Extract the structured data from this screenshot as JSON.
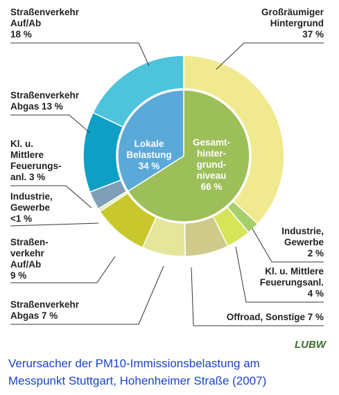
{
  "chart_data": {
    "type": "nested-donut",
    "outer": {
      "label_lines": [
        [
          "Großräumiger",
          "Hintergrund"
        ],
        [
          "Industrie,",
          "Gewerbe"
        ],
        [
          "Kl. u. Mittlere",
          "Feuerungsanl."
        ],
        [
          "Offroad, Sonstige"
        ],
        [
          "Straßenverkehr",
          "Abgas"
        ],
        [
          "Straßen-",
          "verkehr",
          "Auf/Ab"
        ],
        [
          "Industrie,",
          "Gewerbe"
        ],
        [
          "Kl. u.",
          "Mittlere",
          "Feuerungs-",
          "anl."
        ],
        [
          "Straßenverkehr",
          "Abgas"
        ],
        [
          "Straßenverkehr",
          "Auf/Ab"
        ]
      ],
      "values": [
        37,
        2,
        4,
        7,
        7,
        9,
        0.5,
        3,
        13,
        18
      ],
      "value_labels": [
        "37 %",
        "2 %",
        "4 %",
        "7 %",
        "7 %",
        "9 %",
        "<1 %",
        "3 %",
        "13 %",
        "18 %"
      ],
      "colors": [
        "#f1e98f",
        "#a6cf6b",
        "#d6e45a",
        "#cfc98a",
        "#e5e59b",
        "#c8c82e",
        "#e8e8c0",
        "#7e9fb6",
        "#0e9fc4",
        "#4dc4dc"
      ]
    },
    "inner": {
      "label_lines": [
        [
          "Gesamt-",
          "hinter-",
          "grund-",
          "niveau"
        ],
        [
          "Lokale",
          "Belastung"
        ]
      ],
      "values": [
        66,
        34
      ],
      "value_labels": [
        "66 %",
        "34 %"
      ],
      "colors": [
        "#9dbf5a",
        "#5aa9d8"
      ]
    },
    "logo": "LUBW",
    "caption": [
      "Verursacher der PM10-Immissionsbelastung am",
      "Messpunkt Stuttgart, Hohenheimer Straße (2007)"
    ]
  }
}
